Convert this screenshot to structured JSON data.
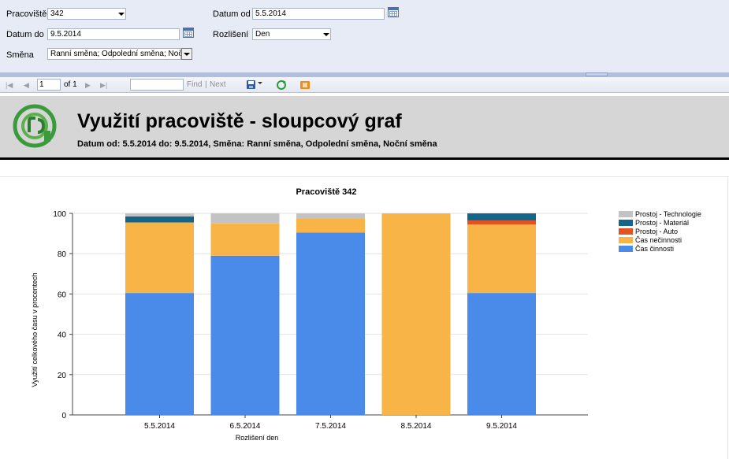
{
  "params": {
    "pracoviste_label": "Pracoviště",
    "pracoviste_value": "342",
    "datum_od_label": "Datum od",
    "datum_od_value": "5.5.2014",
    "datum_do_label": "Datum do",
    "datum_do_value": "9.5.2014",
    "rozliseni_label": "Rozlišení",
    "rozliseni_value": "Den",
    "smena_label": "Směna",
    "smena_value": "Ranní směna; Odpolední směna; Noční směna"
  },
  "toolbar": {
    "page_value": "1",
    "of_label": "of 1",
    "find_label": "Find",
    "separator": "|",
    "next_label": "Next"
  },
  "report": {
    "title": "Využití pracoviště - sloupcový graf",
    "subtitle": "Datum od: 5.5.2014 do: 9.5.2014, Směna: Ranní směna, Odpolední směna, Noční směna"
  },
  "chart_data": {
    "type": "bar",
    "stacked": true,
    "title": "Pracoviště 342",
    "xlabel": "Rozlišení den",
    "ylabel": "Využití celkového času v procentech",
    "ylim": [
      0,
      100
    ],
    "yticks": [
      0,
      20,
      40,
      60,
      80,
      100
    ],
    "grid": true,
    "legend_position": "right",
    "categories": [
      "5.5.2014",
      "6.5.2014",
      "7.5.2014",
      "8.5.2014",
      "9.5.2014"
    ],
    "series": [
      {
        "name": "Čas činnosti",
        "color": "#4a8ae8",
        "values": [
          60.5,
          79,
          90.5,
          0,
          60.5
        ]
      },
      {
        "name": "Čas nečinnosti",
        "color": "#f9b447",
        "values": [
          35,
          16,
          7,
          100,
          34
        ]
      },
      {
        "name": "Prostoj - Auto",
        "color": "#e4531f",
        "values": [
          0,
          0,
          0,
          0,
          2
        ]
      },
      {
        "name": "Prostoj - Materiál",
        "color": "#14658b",
        "values": [
          3,
          0,
          0,
          0,
          3.5
        ]
      },
      {
        "name": "Prostoj - Technologie",
        "color": "#c3c3c3",
        "values": [
          1.5,
          5,
          2.5,
          0,
          0
        ]
      }
    ],
    "legend_order": [
      "Prostoj - Technologie",
      "Prostoj - Materiál",
      "Prostoj - Auto",
      "Čas nečinnosti",
      "Čas činnosti"
    ]
  }
}
